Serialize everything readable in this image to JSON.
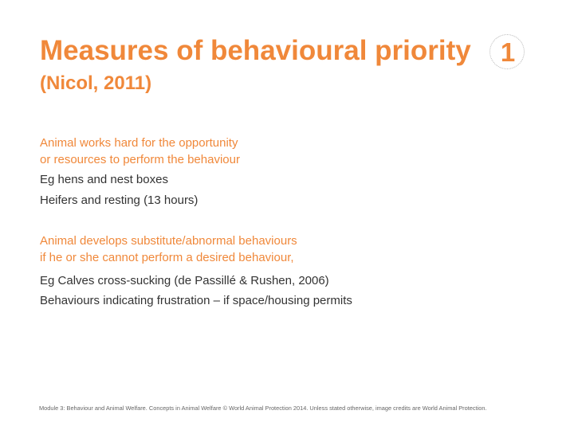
{
  "slide": {
    "title": "Measures of behavioural priority",
    "subtitle": "(Nicol, 2011)",
    "slide_number": "1"
  },
  "section1": {
    "lead_line1": "Animal works hard for the opportunity",
    "lead_line2": "or resources to perform the behaviour",
    "example1": "Eg hens and nest boxes",
    "example2": "Heifers and resting (13 hours)"
  },
  "section2": {
    "lead_line1": "Animal develops substitute/abnormal behaviours",
    "lead_line2": "if he or she cannot perform a desired behaviour,",
    "example1_text": "Eg Calves cross-sucking ",
    "example1_cite": "(de Passillé & Rushen, 2006)",
    "example2": "Behaviours indicating frustration – if space/housing permits"
  },
  "footer": {
    "text": "Module 3: Behaviour and Animal Welfare. Concepts in Animal Welfare © World Animal Protection 2014. Unless stated otherwise, image credits are World Animal Protection."
  },
  "colors": {
    "accent": "#f0883a",
    "body_text": "#333333",
    "footer_text": "#666666",
    "background": "#ffffff"
  }
}
